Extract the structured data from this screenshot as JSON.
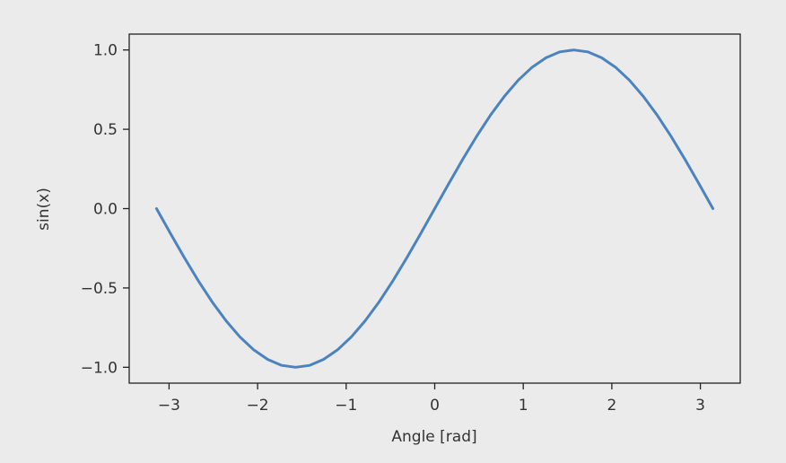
{
  "chart_data": {
    "type": "line",
    "title": "",
    "xlabel": "Angle [rad]",
    "ylabel": "sin(x)",
    "xlim": [
      -3.45,
      3.45
    ],
    "ylim": [
      -1.1,
      1.1
    ],
    "grid": false,
    "x_ticks": [
      {
        "value": -3,
        "label": "−3"
      },
      {
        "value": -2,
        "label": "−2"
      },
      {
        "value": -1,
        "label": "−1"
      },
      {
        "value": 0,
        "label": "0"
      },
      {
        "value": 1,
        "label": "1"
      },
      {
        "value": 2,
        "label": "2"
      },
      {
        "value": 3,
        "label": "3"
      }
    ],
    "y_ticks": [
      {
        "value": -1.0,
        "label": "−1.0"
      },
      {
        "value": -0.5,
        "label": "−0.5"
      },
      {
        "value": 0.0,
        "label": "0.0"
      },
      {
        "value": 0.5,
        "label": "0.5"
      },
      {
        "value": 1.0,
        "label": "1.0"
      }
    ],
    "series": [
      {
        "color": "#4a83bf",
        "x": [
          -3.1416,
          -2.9845,
          -2.8274,
          -2.6704,
          -2.5133,
          -2.3562,
          -2.1991,
          -2.042,
          -1.885,
          -1.7279,
          -1.5708,
          -1.4137,
          -1.2566,
          -1.0996,
          -0.9425,
          -0.7854,
          -0.6283,
          -0.4712,
          -0.3142,
          -0.1571,
          0.0,
          0.1571,
          0.3142,
          0.4712,
          0.6283,
          0.7854,
          0.9425,
          1.0996,
          1.2566,
          1.4137,
          1.5708,
          1.7279,
          1.885,
          2.042,
          2.1991,
          2.3562,
          2.5133,
          2.6704,
          2.8274,
          2.9845,
          3.1416
        ],
        "y": [
          0.0,
          -0.156,
          -0.309,
          -0.454,
          -0.588,
          -0.707,
          -0.809,
          -0.891,
          -0.951,
          -0.988,
          -1.0,
          -0.988,
          -0.951,
          -0.891,
          -0.809,
          -0.707,
          -0.588,
          -0.454,
          -0.309,
          -0.156,
          0.0,
          0.156,
          0.309,
          0.454,
          0.588,
          0.707,
          0.809,
          0.891,
          0.951,
          0.988,
          1.0,
          0.988,
          0.951,
          0.891,
          0.809,
          0.707,
          0.588,
          0.454,
          0.309,
          0.156,
          0.0
        ]
      }
    ]
  }
}
